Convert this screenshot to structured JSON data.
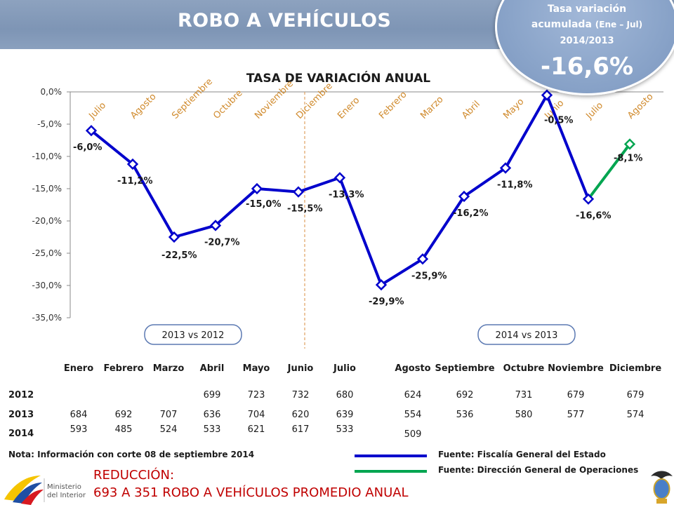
{
  "header": {
    "title": "ROBO A VEHÍCULOS"
  },
  "badge": {
    "line1": "Tasa variación",
    "line2_main": "acumulada",
    "line2_small": "(Ene – Jul)",
    "line3": "2014/2013",
    "value": "-16,6%"
  },
  "chart_data": {
    "type": "line",
    "title": "TASA DE VARIACIÓN ANUAL",
    "xlabel": "",
    "ylabel": "",
    "ylim": [
      -35,
      0
    ],
    "yticks": [
      "0,0%",
      "-5,0%",
      "-10,0%",
      "-15,0%",
      "-20,0%",
      "-25,0%",
      "-30,0%",
      "-35,0%"
    ],
    "categories": [
      "Julio",
      "Agosto",
      "Septiembre",
      "Octubre",
      "Noviembre",
      "Diciembre",
      "Enero",
      "Febrero",
      "Marzo",
      "Abril",
      "Mayo",
      "Junio",
      "Julio",
      "Agosto"
    ],
    "series": [
      {
        "name": "",
        "color": "#0000cc",
        "values": [
          -6.0,
          -11.2,
          -22.5,
          -20.7,
          -15.0,
          -15.5,
          -13.3,
          -29.9,
          -25.9,
          -16.2,
          -11.8,
          -0.5,
          -16.6,
          null
        ],
        "labels": [
          "-6,0%",
          "-11,2%",
          "-22,5%",
          "-20,7%",
          "-15,0%",
          "-15,5%",
          "-13,3%",
          "-29,9%",
          "-25,9%",
          "-16,2%",
          "-11,8%",
          "-0,5%",
          "-16,6%",
          ""
        ]
      },
      {
        "name": "",
        "color": "#00a550",
        "values": [
          null,
          null,
          null,
          null,
          null,
          null,
          null,
          null,
          null,
          null,
          null,
          null,
          -16.6,
          -8.1
        ],
        "labels": [
          "",
          "",
          "",
          "",
          "",
          "",
          "",
          "",
          "",
          "",
          "",
          "",
          "",
          "-8,1%"
        ]
      }
    ],
    "periods": [
      "2013 vs 2012",
      "2014 vs 2013"
    ],
    "grid": false,
    "legend": "none"
  },
  "table": {
    "months": [
      "Enero",
      "Febrero",
      "Marzo",
      "Abril",
      "Mayo",
      "Junio",
      "Julio",
      "Agosto",
      "Septiembre",
      "Octubre",
      "Noviembre",
      "Diciembre"
    ],
    "rows": [
      {
        "year": "2012",
        "values": [
          "",
          "",
          "",
          "699",
          "723",
          "732",
          "680",
          "624",
          "692",
          "731",
          "679",
          "679"
        ]
      },
      {
        "year": "2013",
        "values": [
          "684",
          "692",
          "707",
          "636",
          "704",
          "620",
          "639",
          "554",
          "536",
          "580",
          "577",
          "574"
        ]
      },
      {
        "year": "2014",
        "values": [
          "593",
          "485",
          "524",
          "533",
          "621",
          "617",
          "533",
          "509",
          "",
          "",
          "",
          ""
        ]
      }
    ]
  },
  "note": "Nota: Información con corte 08 de septiembre 2014",
  "sources": [
    {
      "text": "Fuente: Fiscalía General del Estado",
      "color": "#0000cc"
    },
    {
      "text": "Fuente: Dirección General de Operaciones",
      "color": "#00a550"
    }
  ],
  "reduction": {
    "line1": "REDUCCIÓN:",
    "line2": "693 A 351 ROBO A VEHÍCULOS PROMEDIO ANUAL"
  },
  "logo": {
    "line1": "Ministerio",
    "line2": "del Interior"
  }
}
